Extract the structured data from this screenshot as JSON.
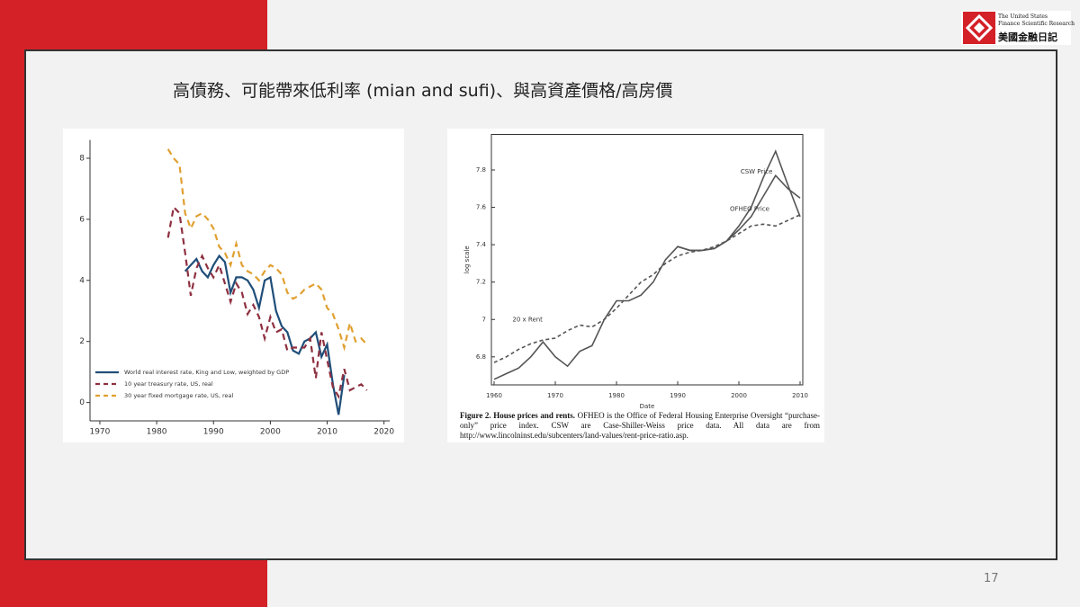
{
  "slide_title": "高債務、可能帶來低利率 (mian and sufi)、與高資產價格/高房價",
  "page_number": "17",
  "logo": {
    "line1": "The United States",
    "line2": "Finance Scientific Research",
    "line3": "美國金融日記"
  },
  "caption": {
    "label": "Figure 2. House prices and rents.",
    "text": "OFHEO is the Office of Federal Housing Enterprise Oversight “purchase-only” price index. CSW are Case-Shiller-Weiss price data. All data are from http://www.lincolninst.edu/subcenters/land-values/rent-price-ratio.asp."
  },
  "chart_data": [
    {
      "type": "line",
      "legend": "lower left",
      "x": [
        1982,
        1983,
        1984,
        1985,
        1986,
        1987,
        1988,
        1989,
        1990,
        1991,
        1992,
        1993,
        1994,
        1995,
        1996,
        1997,
        1998,
        1999,
        2000,
        2001,
        2002,
        2003,
        2004,
        2005,
        2006,
        2007,
        2008,
        2009,
        2010,
        2011,
        2012,
        2013,
        2014,
        2015,
        2016,
        2017
      ],
      "series": [
        {
          "name": "World real interest rate, King and Low, weighted by GDP",
          "color": "#1f4e79",
          "dash": false,
          "values": [
            null,
            null,
            null,
            4.3,
            4.5,
            4.7,
            4.3,
            4.1,
            4.5,
            4.8,
            4.6,
            3.6,
            4.1,
            4.1,
            4.0,
            3.7,
            3.1,
            4.0,
            4.1,
            3.0,
            2.5,
            2.3,
            1.7,
            1.6,
            2.0,
            2.1,
            2.3,
            1.5,
            1.9,
            0.6,
            -0.4,
            0.9,
            null,
            null,
            null,
            null
          ]
        },
        {
          "name": "10 year treasury rate, US, real",
          "color": "#8e3040",
          "dash": true,
          "values": [
            5.4,
            6.4,
            6.2,
            4.9,
            3.5,
            4.4,
            4.8,
            4.4,
            4.1,
            4.5,
            3.9,
            3.3,
            3.9,
            3.6,
            2.9,
            3.2,
            2.8,
            2.1,
            2.8,
            2.3,
            2.4,
            1.7,
            1.8,
            1.8,
            1.8,
            2.1,
            0.8,
            2.3,
            1.4,
            0.5,
            0.2,
            1.1,
            0.4,
            0.5,
            0.6,
            0.4
          ]
        },
        {
          "name": "30 year fixed mortgage rate, US, real",
          "color": "#e0a030",
          "dash": true,
          "values": [
            8.3,
            8.0,
            7.8,
            6.2,
            5.7,
            6.1,
            6.2,
            6.0,
            5.7,
            5.1,
            4.9,
            4.5,
            5.2,
            4.5,
            4.3,
            4.2,
            4.0,
            4.3,
            4.5,
            4.4,
            4.2,
            3.6,
            3.4,
            3.5,
            3.7,
            3.8,
            3.9,
            3.7,
            3.1,
            2.9,
            2.4,
            1.8,
            2.6,
            2.0,
            2.1,
            1.9
          ]
        }
      ],
      "xlim": [
        1967,
        2021
      ],
      "xticks": [
        1970,
        1980,
        1990,
        2000,
        2010,
        2020
      ],
      "ylim": [
        -0.6,
        8.6
      ],
      "yticks": [
        0,
        2,
        4,
        6,
        8
      ]
    },
    {
      "type": "line",
      "legend": "inline",
      "xlabel": "Date",
      "ylabel": "log scale",
      "x": [
        1960,
        1962,
        1964,
        1966,
        1968,
        1970,
        1972,
        1974,
        1976,
        1978,
        1980,
        1982,
        1984,
        1986,
        1988,
        1990,
        1992,
        1994,
        1996,
        1998,
        2000,
        2002,
        2004,
        2006,
        2008,
        2010
      ],
      "series": [
        {
          "name": "CSW Price",
          "color": "#555555",
          "dash": false,
          "values": [
            6.68,
            6.71,
            6.74,
            6.8,
            6.88,
            6.8,
            6.75,
            6.83,
            6.86,
            7.0,
            7.1,
            7.1,
            7.13,
            7.2,
            7.32,
            7.39,
            7.37,
            7.37,
            7.38,
            7.42,
            7.5,
            7.6,
            7.76,
            7.9,
            7.72,
            7.55
          ]
        },
        {
          "name": "OFHEO Price",
          "color": "#555555",
          "dash": false,
          "values": [
            null,
            null,
            null,
            null,
            null,
            null,
            null,
            null,
            null,
            null,
            null,
            null,
            null,
            null,
            null,
            7.39,
            7.37,
            7.37,
            7.38,
            7.42,
            7.48,
            7.55,
            7.66,
            7.77,
            7.7,
            7.65
          ]
        },
        {
          "name": "20 x Rent",
          "color": "#555555",
          "dash": true,
          "values": [
            6.77,
            6.8,
            6.84,
            6.87,
            6.89,
            6.9,
            6.94,
            6.97,
            6.96,
            7.0,
            7.06,
            7.13,
            7.2,
            7.24,
            7.3,
            7.34,
            7.36,
            7.37,
            7.39,
            7.42,
            7.46,
            7.5,
            7.51,
            7.5,
            7.53,
            7.56
          ]
        }
      ],
      "xlim": [
        1960,
        2010
      ],
      "xticks": [
        1960,
        1970,
        1980,
        1990,
        2000,
        2010
      ],
      "ylim": [
        6.65,
        7.99
      ],
      "yticks": [
        6.8,
        7,
        7.2,
        7.4,
        7.6,
        7.8
      ]
    }
  ]
}
